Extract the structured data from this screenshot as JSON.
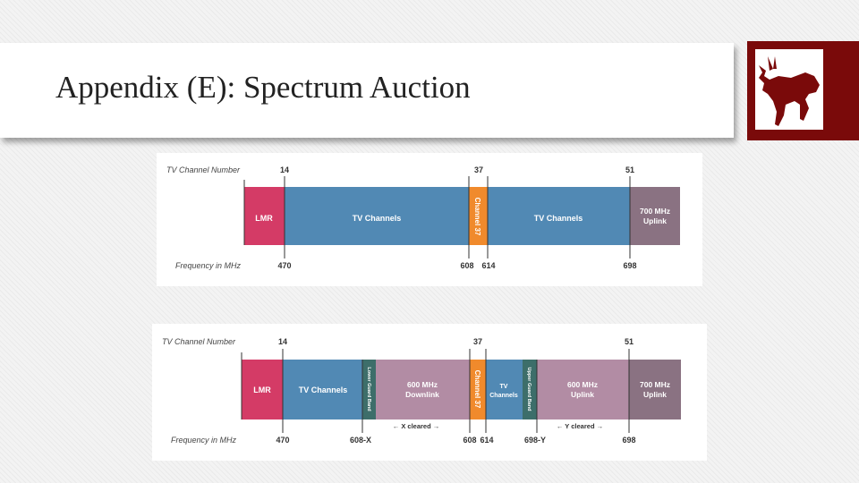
{
  "slide": {
    "title": "Appendix (E): Spectrum Auction",
    "accent_color": "#7a0a0a",
    "logo_icon": "bull-icon"
  },
  "diagram1": {
    "row_labels": {
      "channel": "TV Channel Number",
      "frequency": "Frequency in MHz"
    },
    "channels": {
      "c14": "14",
      "c37": "37",
      "c51": "51"
    },
    "freqs": {
      "f470": "470",
      "f608": "608",
      "f614": "614",
      "f698": "698"
    },
    "segments": {
      "lmr": "LMR",
      "tv1": "TV Channels",
      "ch37": "Channel 37",
      "tv2": "TV Channels",
      "uplink700_line1": "700 MHz",
      "uplink700_line2": "Uplink"
    }
  },
  "diagram2": {
    "row_labels": {
      "channel": "TV Channel Number",
      "frequency": "Frequency in MHz"
    },
    "channels": {
      "c14": "14",
      "c37": "37",
      "c51": "51"
    },
    "freqs": {
      "f470": "470",
      "f608x": "608-X",
      "f608": "608",
      "f614": "614",
      "f698y": "698-Y",
      "f698": "698"
    },
    "segments": {
      "lmr": "LMR",
      "tv1": "TV Channels",
      "lower_guard": "Lower Guard Band",
      "downlink_line1": "600 MHz",
      "downlink_line2": "Downlink",
      "ch37": "Channel 37",
      "tv_mid_line1": "TV",
      "tv_mid_line2": "Channels",
      "upper_guard": "Upper Guard Band",
      "uplink600_line1": "600 MHz",
      "uplink600_line2": "Uplink",
      "uplink700_line1": "700 MHz",
      "uplink700_line2": "Uplink"
    },
    "cleared": {
      "x": "← X cleared →",
      "y": "← Y cleared →"
    }
  },
  "colors": {
    "lmr": "#d43b66",
    "tv": "#5189b4",
    "ch37": "#f08a2c",
    "guard": "#3d6e6a",
    "band600": "#b28ca4",
    "band700": "#8a7282"
  }
}
